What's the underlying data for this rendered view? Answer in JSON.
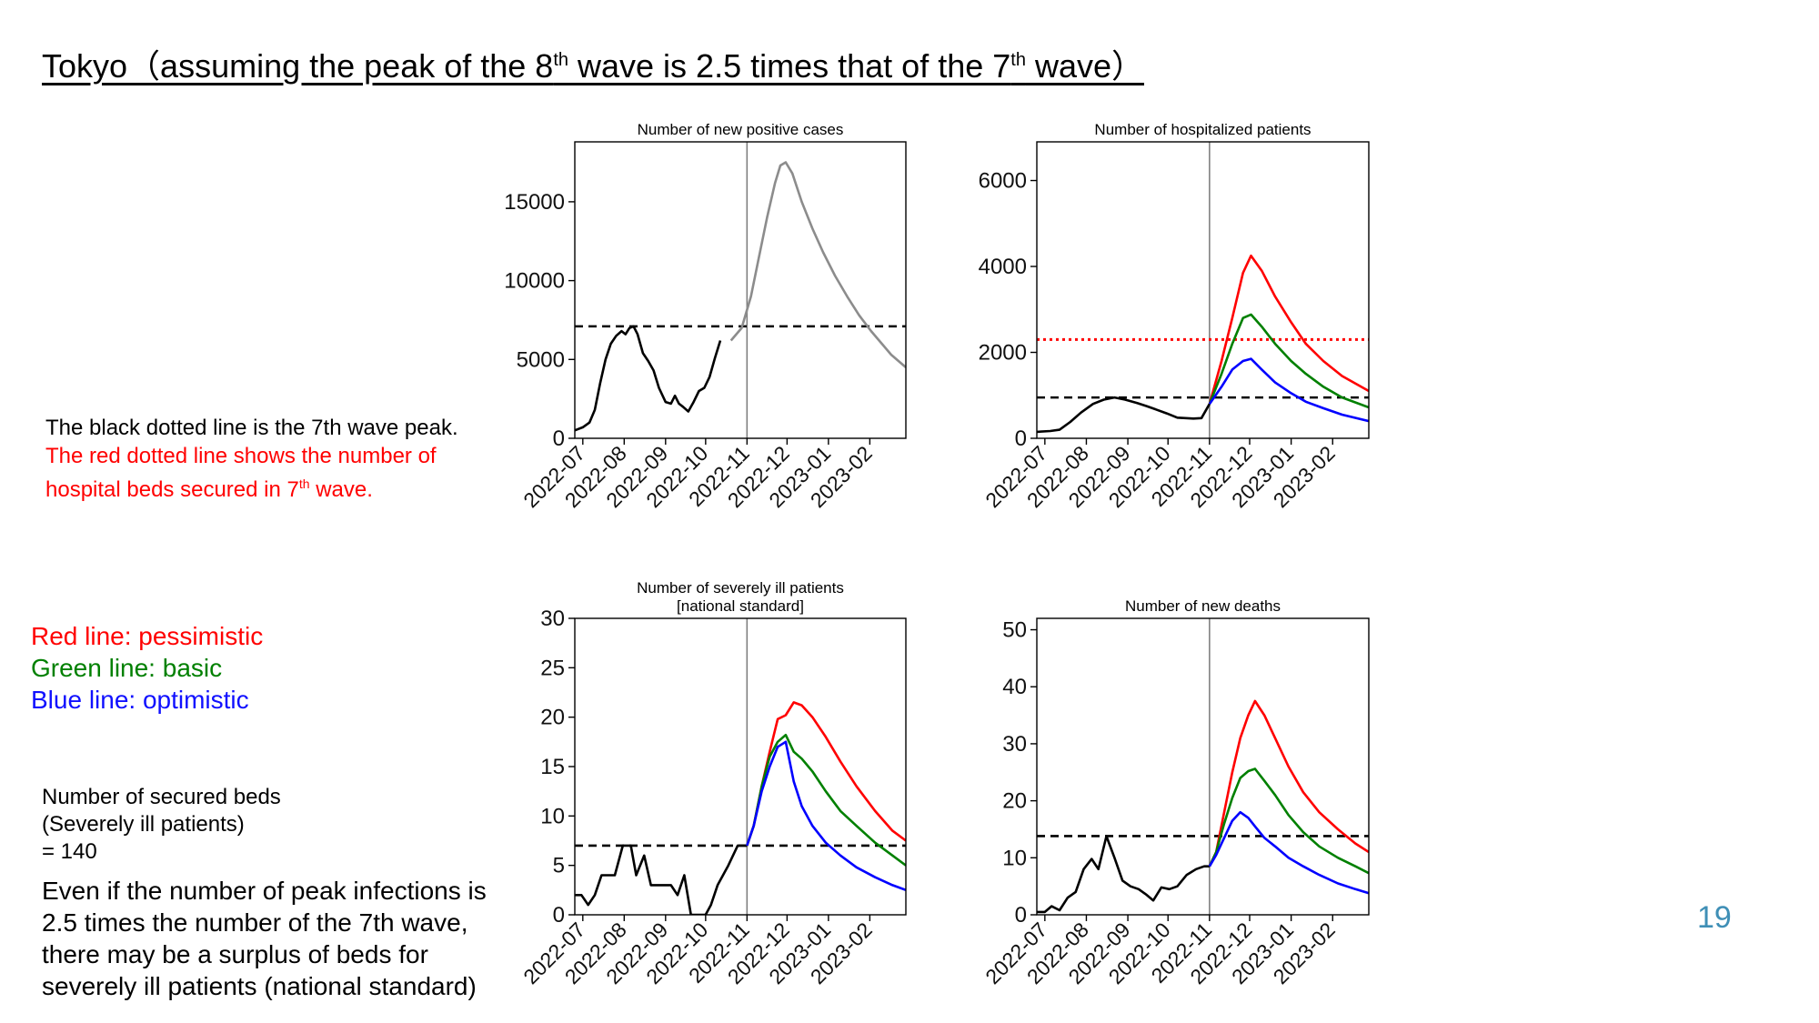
{
  "slide": {
    "title_pre": "Tokyo（assuming the peak of the 8",
    "title_sup1": "th",
    "title_mid": " wave is 2.5 times that of the 7",
    "title_sup2": "th",
    "title_post": " wave）",
    "note_black": "The black dotted line is the 7th wave peak.",
    "note_red_line1": "The red dotted line shows the number of",
    "note_red_line2_pre": "hospital beds secured in 7",
    "note_red_line2_sup": "th",
    "note_red_line2_post": " wave.",
    "legend_red": "Red line: pessimistic",
    "legend_green": "Green line: basic",
    "legend_blue": "Blue line: optimistic",
    "beds_line1": "Number of secured beds",
    "beds_line2": "(Severely ill patients)",
    "beds_line3": "= 140",
    "conclusion_line1": "Even if the number of peak infections is",
    "conclusion_line2": "2.5 times the number of the 7th wave,",
    "conclusion_line3": "there may be a surplus of beds for",
    "conclusion_line4": "severely ill patients (national standard)",
    "page_number": "19"
  },
  "colors": {
    "actual": "#000000",
    "projection_gray": "#8c8c8c",
    "pessimistic": "#ff0000",
    "basic": "#008000",
    "optimistic": "#0000ff",
    "reference_peak": "#000000",
    "secured_beds": "#ff0000",
    "vertical_marker": "#808080"
  },
  "chart_data": [
    {
      "id": "positive",
      "type": "line",
      "title": "Number of new positive cases",
      "xlabel": "",
      "ylabel": "",
      "x_ticks": [
        "2022-07",
        "2022-08",
        "2022-09",
        "2022-10",
        "2022-11",
        "2022-12",
        "2023-01",
        "2023-02"
      ],
      "xlim": [
        "2022-06-25",
        "2023-02-28"
      ],
      "ylim": [
        0,
        18800
      ],
      "y_ticks": [
        0,
        5000,
        10000,
        15000
      ],
      "current_date": "2022-11-01",
      "hlines": [
        {
          "name": "7th wave peak",
          "y": 7100,
          "style": "dashed",
          "color": "#000000"
        }
      ],
      "series": [
        {
          "role": "actual",
          "color": "#000000",
          "x": [
            "2022-06-25",
            "2022-07-01",
            "2022-07-06",
            "2022-07-10",
            "2022-07-14",
            "2022-07-18",
            "2022-07-22",
            "2022-07-26",
            "2022-07-30",
            "2022-08-02",
            "2022-08-05",
            "2022-08-08",
            "2022-08-11",
            "2022-08-15",
            "2022-08-19",
            "2022-08-23",
            "2022-08-27",
            "2022-09-01",
            "2022-09-05",
            "2022-09-08",
            "2022-09-11",
            "2022-09-14",
            "2022-09-18",
            "2022-09-22",
            "2022-09-26",
            "2022-09-30",
            "2022-10-04",
            "2022-10-08",
            "2022-10-12",
            "2022-10-16",
            "2022-10-20",
            "2022-10-24",
            "2022-10-28",
            "2022-11-01"
          ],
          "y": [
            500,
            700,
            1000,
            1800,
            3500,
            5000,
            6000,
            6500,
            6800,
            6600,
            7000,
            7100,
            6600,
            5400,
            4900,
            4300,
            3200,
            2300,
            2200,
            2700,
            2200,
            2000,
            1700,
            2300,
            3000,
            3200,
            3900,
            5100,
            6200,
            null,
            null,
            null,
            null,
            null
          ]
        },
        {
          "role": "projection",
          "color": "#8c8c8c",
          "x": [
            "2022-10-20",
            "2022-10-28",
            "2022-11-04",
            "2022-11-10",
            "2022-11-16",
            "2022-11-22",
            "2022-11-26",
            "2022-11-30",
            "2022-12-05",
            "2022-12-12",
            "2022-12-20",
            "2022-12-28",
            "2023-01-06",
            "2023-01-15",
            "2023-01-24",
            "2023-02-02",
            "2023-02-10",
            "2023-02-17",
            "2023-02-28"
          ],
          "y": [
            6200,
            7000,
            9000,
            11500,
            14000,
            16200,
            17300,
            17500,
            16800,
            15000,
            13300,
            11800,
            10300,
            9000,
            7800,
            6800,
            6000,
            5300,
            4500
          ]
        }
      ]
    },
    {
      "id": "hospitalized",
      "type": "line",
      "title": "Number of hospitalized patients",
      "xlabel": "",
      "ylabel": "",
      "x_ticks": [
        "2022-07",
        "2022-08",
        "2022-09",
        "2022-10",
        "2022-11",
        "2022-12",
        "2023-01",
        "2023-02"
      ],
      "xlim": [
        "2022-06-25",
        "2023-02-28"
      ],
      "ylim": [
        0,
        6900
      ],
      "y_ticks": [
        0,
        2000,
        4000,
        6000
      ],
      "current_date": "2022-11-01",
      "hlines": [
        {
          "name": "7th wave peak",
          "y": 950,
          "style": "dashed",
          "color": "#000000"
        },
        {
          "name": "secured beds",
          "y": 2300,
          "style": "dotted",
          "color": "#ff0000"
        }
      ],
      "series": [
        {
          "role": "actual",
          "color": "#000000",
          "x": [
            "2022-06-25",
            "2022-07-05",
            "2022-07-12",
            "2022-07-20",
            "2022-07-28",
            "2022-08-06",
            "2022-08-14",
            "2022-08-22",
            "2022-08-30",
            "2022-09-08",
            "2022-09-15",
            "2022-09-22",
            "2022-09-30",
            "2022-10-08",
            "2022-10-14",
            "2022-10-20",
            "2022-10-26",
            "2022-11-01"
          ],
          "y": [
            150,
            170,
            200,
            380,
            600,
            800,
            900,
            950,
            900,
            820,
            750,
            670,
            580,
            480,
            470,
            460,
            470,
            800
          ]
        },
        {
          "role": "pessimistic",
          "color": "#ff0000",
          "x": [
            "2022-11-01",
            "2022-11-10",
            "2022-11-18",
            "2022-11-26",
            "2022-12-02",
            "2022-12-10",
            "2022-12-20",
            "2023-01-01",
            "2023-01-12",
            "2023-01-25",
            "2023-02-08",
            "2023-02-28"
          ],
          "y": [
            800,
            1800,
            2800,
            3850,
            4250,
            3900,
            3300,
            2700,
            2200,
            1800,
            1450,
            1100
          ]
        },
        {
          "role": "basic",
          "color": "#008000",
          "x": [
            "2022-11-01",
            "2022-11-10",
            "2022-11-18",
            "2022-11-26",
            "2022-12-02",
            "2022-12-10",
            "2022-12-20",
            "2023-01-01",
            "2023-01-12",
            "2023-01-25",
            "2023-02-08",
            "2023-02-28"
          ],
          "y": [
            800,
            1500,
            2200,
            2800,
            2880,
            2600,
            2200,
            1800,
            1500,
            1200,
            950,
            720
          ]
        },
        {
          "role": "optimistic",
          "color": "#0000ff",
          "x": [
            "2022-11-01",
            "2022-11-10",
            "2022-11-18",
            "2022-11-26",
            "2022-12-02",
            "2022-12-10",
            "2022-12-20",
            "2023-01-01",
            "2023-01-12",
            "2023-01-25",
            "2023-02-08",
            "2023-02-28"
          ],
          "y": [
            800,
            1200,
            1600,
            1800,
            1850,
            1600,
            1300,
            1050,
            850,
            700,
            550,
            400
          ]
        }
      ]
    },
    {
      "id": "severe",
      "type": "line",
      "title": "Number of severely ill patients",
      "subtitle": "[national standard]",
      "xlabel": "",
      "ylabel": "",
      "x_ticks": [
        "2022-07",
        "2022-08",
        "2022-09",
        "2022-10",
        "2022-11",
        "2022-12",
        "2023-01",
        "2023-02"
      ],
      "xlim": [
        "2022-06-25",
        "2023-02-28"
      ],
      "ylim": [
        0,
        30
      ],
      "y_ticks": [
        0,
        5,
        10,
        15,
        20,
        25,
        30
      ],
      "current_date": "2022-11-01",
      "hlines": [
        {
          "name": "7th wave peak",
          "y": 7,
          "style": "dashed",
          "color": "#000000"
        }
      ],
      "series": [
        {
          "role": "actual",
          "color": "#000000",
          "x": [
            "2022-06-25",
            "2022-06-30",
            "2022-07-05",
            "2022-07-10",
            "2022-07-15",
            "2022-07-20",
            "2022-07-25",
            "2022-07-31",
            "2022-08-06",
            "2022-08-10",
            "2022-08-16",
            "2022-08-21",
            "2022-08-26",
            "2022-08-31",
            "2022-09-05",
            "2022-09-10",
            "2022-09-15",
            "2022-09-20",
            "2022-09-25",
            "2022-10-01",
            "2022-10-05",
            "2022-10-10",
            "2022-10-18",
            "2022-10-25",
            "2022-11-01"
          ],
          "y": [
            2,
            2,
            1,
            2,
            4,
            4,
            4,
            7,
            7,
            4,
            6,
            3,
            3,
            3,
            3,
            2,
            4,
            0,
            0,
            0,
            1,
            3,
            5,
            7,
            7
          ]
        },
        {
          "role": "pessimistic",
          "color": "#ff0000",
          "x": [
            "2022-11-01",
            "2022-11-06",
            "2022-11-12",
            "2022-11-18",
            "2022-11-24",
            "2022-11-30",
            "2022-12-06",
            "2022-12-12",
            "2022-12-20",
            "2022-12-30",
            "2023-01-10",
            "2023-01-22",
            "2023-02-05",
            "2023-02-18",
            "2023-02-28"
          ],
          "y": [
            7,
            9,
            13,
            16.5,
            19.8,
            20.2,
            21.5,
            21.2,
            20,
            18,
            15.5,
            13,
            10.5,
            8.5,
            7.5
          ]
        },
        {
          "role": "basic",
          "color": "#008000",
          "x": [
            "2022-11-01",
            "2022-11-06",
            "2022-11-12",
            "2022-11-18",
            "2022-11-24",
            "2022-11-30",
            "2022-12-06",
            "2022-12-12",
            "2022-12-20",
            "2022-12-30",
            "2023-01-10",
            "2023-01-22",
            "2023-02-05",
            "2023-02-18",
            "2023-02-28"
          ],
          "y": [
            7,
            9,
            13,
            16,
            17.5,
            18.2,
            16.5,
            15.8,
            14.5,
            12.5,
            10.5,
            9,
            7.3,
            6,
            5
          ]
        },
        {
          "role": "optimistic",
          "color": "#0000ff",
          "x": [
            "2022-11-01",
            "2022-11-06",
            "2022-11-12",
            "2022-11-18",
            "2022-11-24",
            "2022-11-30",
            "2022-12-06",
            "2022-12-12",
            "2022-12-20",
            "2022-12-30",
            "2023-01-10",
            "2023-01-22",
            "2023-02-05",
            "2023-02-18",
            "2023-02-28"
          ],
          "y": [
            7,
            9,
            12.5,
            15,
            17,
            17.5,
            13.5,
            11,
            9,
            7.3,
            6,
            4.8,
            3.8,
            3,
            2.5
          ]
        }
      ]
    },
    {
      "id": "deaths",
      "type": "line",
      "title": "Number of new deaths",
      "xlabel": "",
      "ylabel": "",
      "x_ticks": [
        "2022-07",
        "2022-08",
        "2022-09",
        "2022-10",
        "2022-11",
        "2022-12",
        "2023-01",
        "2023-02"
      ],
      "xlim": [
        "2022-06-25",
        "2023-02-28"
      ],
      "ylim": [
        0,
        52
      ],
      "y_ticks": [
        0,
        10,
        20,
        30,
        40,
        50
      ],
      "current_date": "2022-11-01",
      "hlines": [
        {
          "name": "7th wave peak",
          "y": 13.8,
          "style": "dashed",
          "color": "#000000"
        }
      ],
      "series": [
        {
          "role": "actual",
          "color": "#000000",
          "x": [
            "2022-06-25",
            "2022-07-01",
            "2022-07-06",
            "2022-07-12",
            "2022-07-18",
            "2022-07-24",
            "2022-07-30",
            "2022-08-05",
            "2022-08-10",
            "2022-08-16",
            "2022-08-22",
            "2022-08-28",
            "2022-09-03",
            "2022-09-09",
            "2022-09-15",
            "2022-09-20",
            "2022-09-26",
            "2022-10-02",
            "2022-10-08",
            "2022-10-15",
            "2022-10-22",
            "2022-10-28",
            "2022-11-01"
          ],
          "y": [
            0.5,
            0.5,
            1.5,
            0.8,
            3,
            4,
            8,
            9.8,
            8,
            13.8,
            10,
            6,
            5,
            4.5,
            3.5,
            2.5,
            4.8,
            4.5,
            5,
            7,
            8,
            8.5,
            8.5
          ]
        },
        {
          "role": "pessimistic",
          "color": "#ff0000",
          "x": [
            "2022-11-01",
            "2022-11-06",
            "2022-11-12",
            "2022-11-18",
            "2022-11-24",
            "2022-11-30",
            "2022-12-05",
            "2022-12-12",
            "2022-12-20",
            "2022-12-30",
            "2023-01-10",
            "2023-01-22",
            "2023-02-05",
            "2023-02-18",
            "2023-02-28"
          ],
          "y": [
            8.5,
            11,
            18,
            25,
            31,
            35,
            37.5,
            35,
            31,
            26,
            21.5,
            18,
            15,
            12.5,
            11
          ]
        },
        {
          "role": "basic",
          "color": "#008000",
          "x": [
            "2022-11-01",
            "2022-11-06",
            "2022-11-12",
            "2022-11-18",
            "2022-11-24",
            "2022-11-30",
            "2022-12-05",
            "2022-12-12",
            "2022-12-20",
            "2022-12-30",
            "2023-01-10",
            "2023-01-22",
            "2023-02-05",
            "2023-02-18",
            "2023-02-28"
          ],
          "y": [
            8.5,
            11,
            16,
            20.5,
            24,
            25.2,
            25.6,
            23.5,
            21,
            17.5,
            14.5,
            12,
            10,
            8.5,
            7.3
          ]
        },
        {
          "role": "optimistic",
          "color": "#0000ff",
          "x": [
            "2022-11-01",
            "2022-11-06",
            "2022-11-12",
            "2022-11-18",
            "2022-11-24",
            "2022-11-30",
            "2022-12-05",
            "2022-12-12",
            "2022-12-20",
            "2022-12-30",
            "2023-01-10",
            "2023-01-22",
            "2023-02-05",
            "2023-02-18",
            "2023-02-28"
          ],
          "y": [
            8.5,
            10.5,
            13.5,
            16.5,
            18,
            17,
            15.5,
            13.5,
            12,
            10,
            8.5,
            7,
            5.5,
            4.5,
            3.8
          ]
        }
      ]
    }
  ]
}
